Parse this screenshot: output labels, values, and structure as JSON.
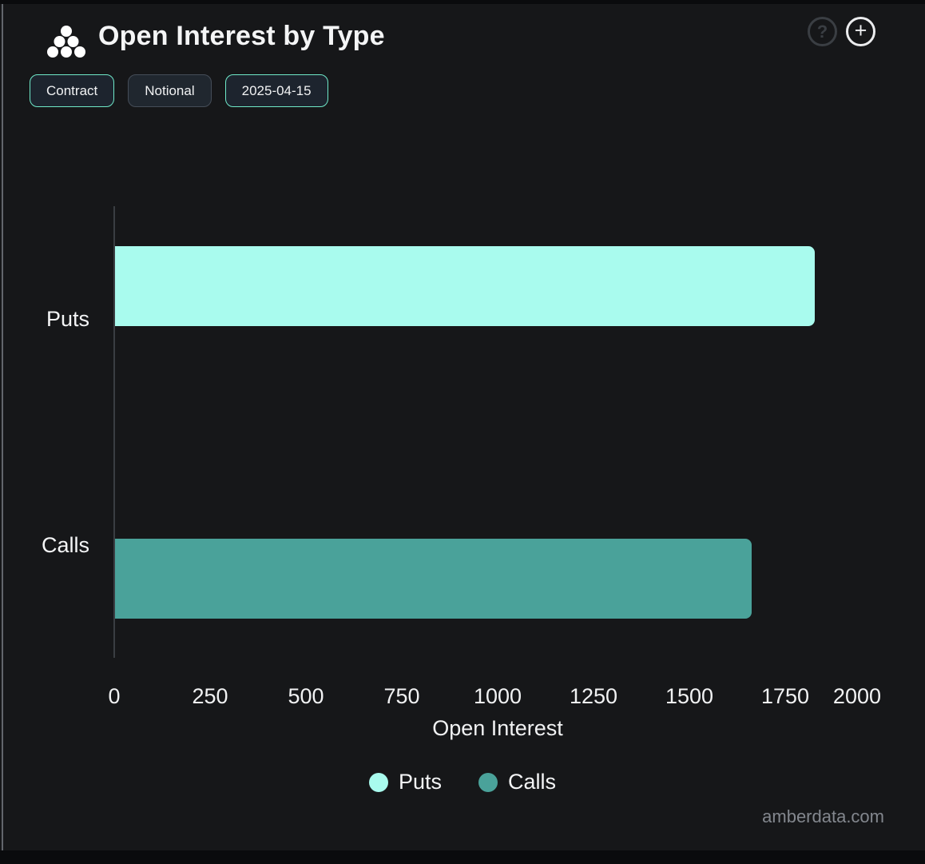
{
  "header": {
    "title": "Open Interest by Type",
    "help_button_glyph": "?",
    "add_button_glyph": "+"
  },
  "toolbar": {
    "contract_label": "Contract",
    "notional_label": "Notional",
    "date_label": "2025-04-15"
  },
  "chart_data": {
    "type": "bar",
    "orientation": "horizontal",
    "title": "Open Interest by Type",
    "categories": [
      "Puts",
      "Calls"
    ],
    "series": [
      {
        "name": "Puts",
        "color": "#a9fbee",
        "values": [
          1825,
          0
        ]
      },
      {
        "name": "Calls",
        "color": "#4aa29a",
        "values": [
          0,
          1660
        ]
      }
    ],
    "xlabel": "Open Interest",
    "x_ticks": [
      0,
      250,
      500,
      750,
      1000,
      1250,
      1500,
      1750,
      2000
    ],
    "xlim": [
      0,
      2000
    ],
    "grid": false,
    "legend": {
      "position": "bottom",
      "entries": [
        "Puts",
        "Calls"
      ]
    },
    "date_selected": "2025-04-15",
    "unit_mode": "Contract"
  },
  "watermark": "amberdata.com",
  "colors": {
    "card_background": "#161719",
    "page_edge": "#0a0b0d",
    "active_pill_border": "#6fe9c9",
    "inactive_pill_border": "#454d58",
    "puts_bar": "#a9fbee",
    "calls_bar": "#4aa29a",
    "axis_line": "#3a3e42",
    "watermark_text": "#83878e"
  }
}
